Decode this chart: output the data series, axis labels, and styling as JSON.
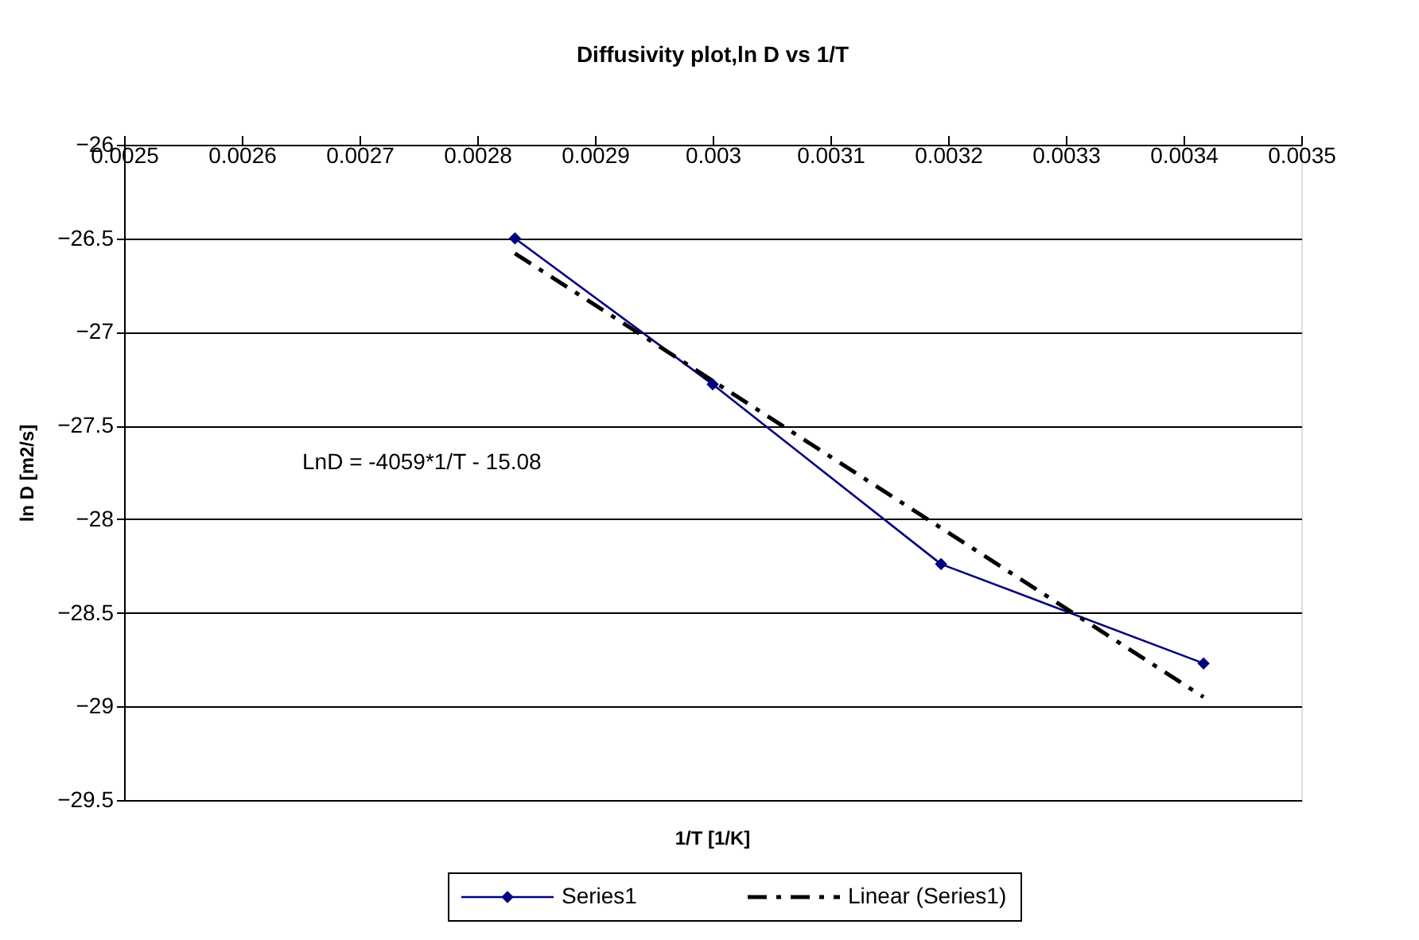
{
  "chart_data": {
    "type": "line",
    "title": "Diffusivity plot,ln D vs 1/T",
    "xlabel": "1/T [1/K]",
    "ylabel": "ln D [m2/s]",
    "xlim": [
      0.0025,
      0.0035
    ],
    "xticks": [
      0.0025,
      0.0026,
      0.0027,
      0.0028,
      0.0029,
      0.003,
      0.0031,
      0.0032,
      0.0033,
      0.0034,
      0.0035
    ],
    "ylim": [
      -29.5,
      -26
    ],
    "yticks": [
      -29.5,
      -29,
      -28.5,
      -28,
      -27.5,
      -27,
      -26.5,
      -26
    ],
    "grid": "y",
    "legend": "bottom",
    "series": [
      {
        "name": "Series1",
        "color": "#000080",
        "x": [
          0.002832,
          0.003,
          0.003194,
          0.003417
        ],
        "values": [
          -26.5,
          -27.28,
          -28.24,
          -28.77
        ],
        "marker": "diamond",
        "line_style": "solid"
      },
      {
        "name": "Linear (Series1)",
        "color": "#000000",
        "x": [
          0.002832,
          0.003417
        ],
        "values": [
          -26.58,
          -28.95
        ],
        "marker": "none",
        "line_style": "dashdot"
      }
    ],
    "annotations": [
      "LnD = -4059*1/T - 15.08"
    ]
  }
}
